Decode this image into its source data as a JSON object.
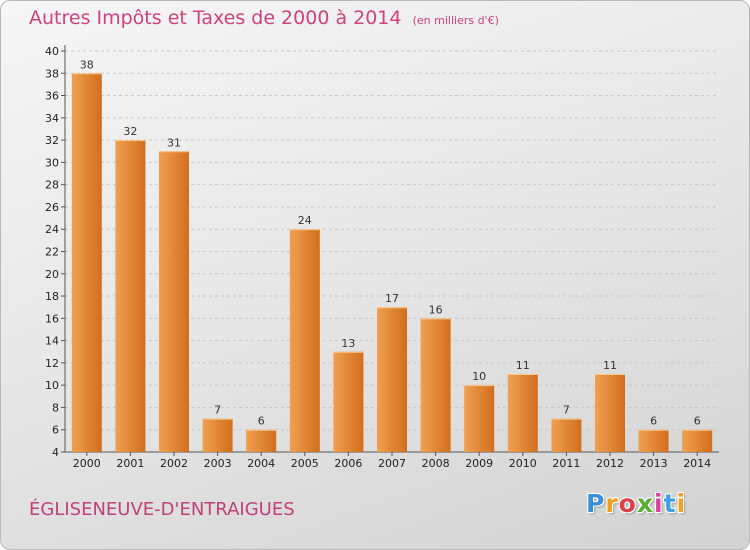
{
  "header": {
    "title": "Autres Impôts et Taxes de 2000 à 2014",
    "unit": "(en milliers d'€)"
  },
  "footer": {
    "commune": "ÉGLISENEUVE-D'ENTRAIGUES",
    "logo_letters": [
      "P",
      "r",
      "o",
      "x",
      "i",
      "t",
      "i"
    ],
    "logo_colors": [
      "#3a8fd6",
      "#f0a020",
      "#e0404a",
      "#58b030",
      "#e0409a",
      "#40a0e0",
      "#f0a020"
    ]
  },
  "chart_data": {
    "type": "bar",
    "title": "Autres Impôts et Taxes de 2000 à 2014",
    "subtitle": "(en milliers d'€)",
    "categories": [
      "2000",
      "2001",
      "2002",
      "2003",
      "2004",
      "2005",
      "2006",
      "2007",
      "2008",
      "2009",
      "2010",
      "2011",
      "2012",
      "2013",
      "2014"
    ],
    "values": [
      38,
      32,
      31,
      7,
      6,
      24,
      13,
      17,
      16,
      10,
      11,
      7,
      11,
      6,
      6
    ],
    "yticks": [
      4,
      6,
      8,
      10,
      12,
      14,
      16,
      18,
      20,
      22,
      24,
      26,
      28,
      30,
      32,
      34,
      36,
      38,
      40
    ],
    "ylim": [
      4,
      40
    ],
    "grid": true,
    "bar_color": "#f0a050",
    "bar_color_dark": "#d26e1e"
  }
}
